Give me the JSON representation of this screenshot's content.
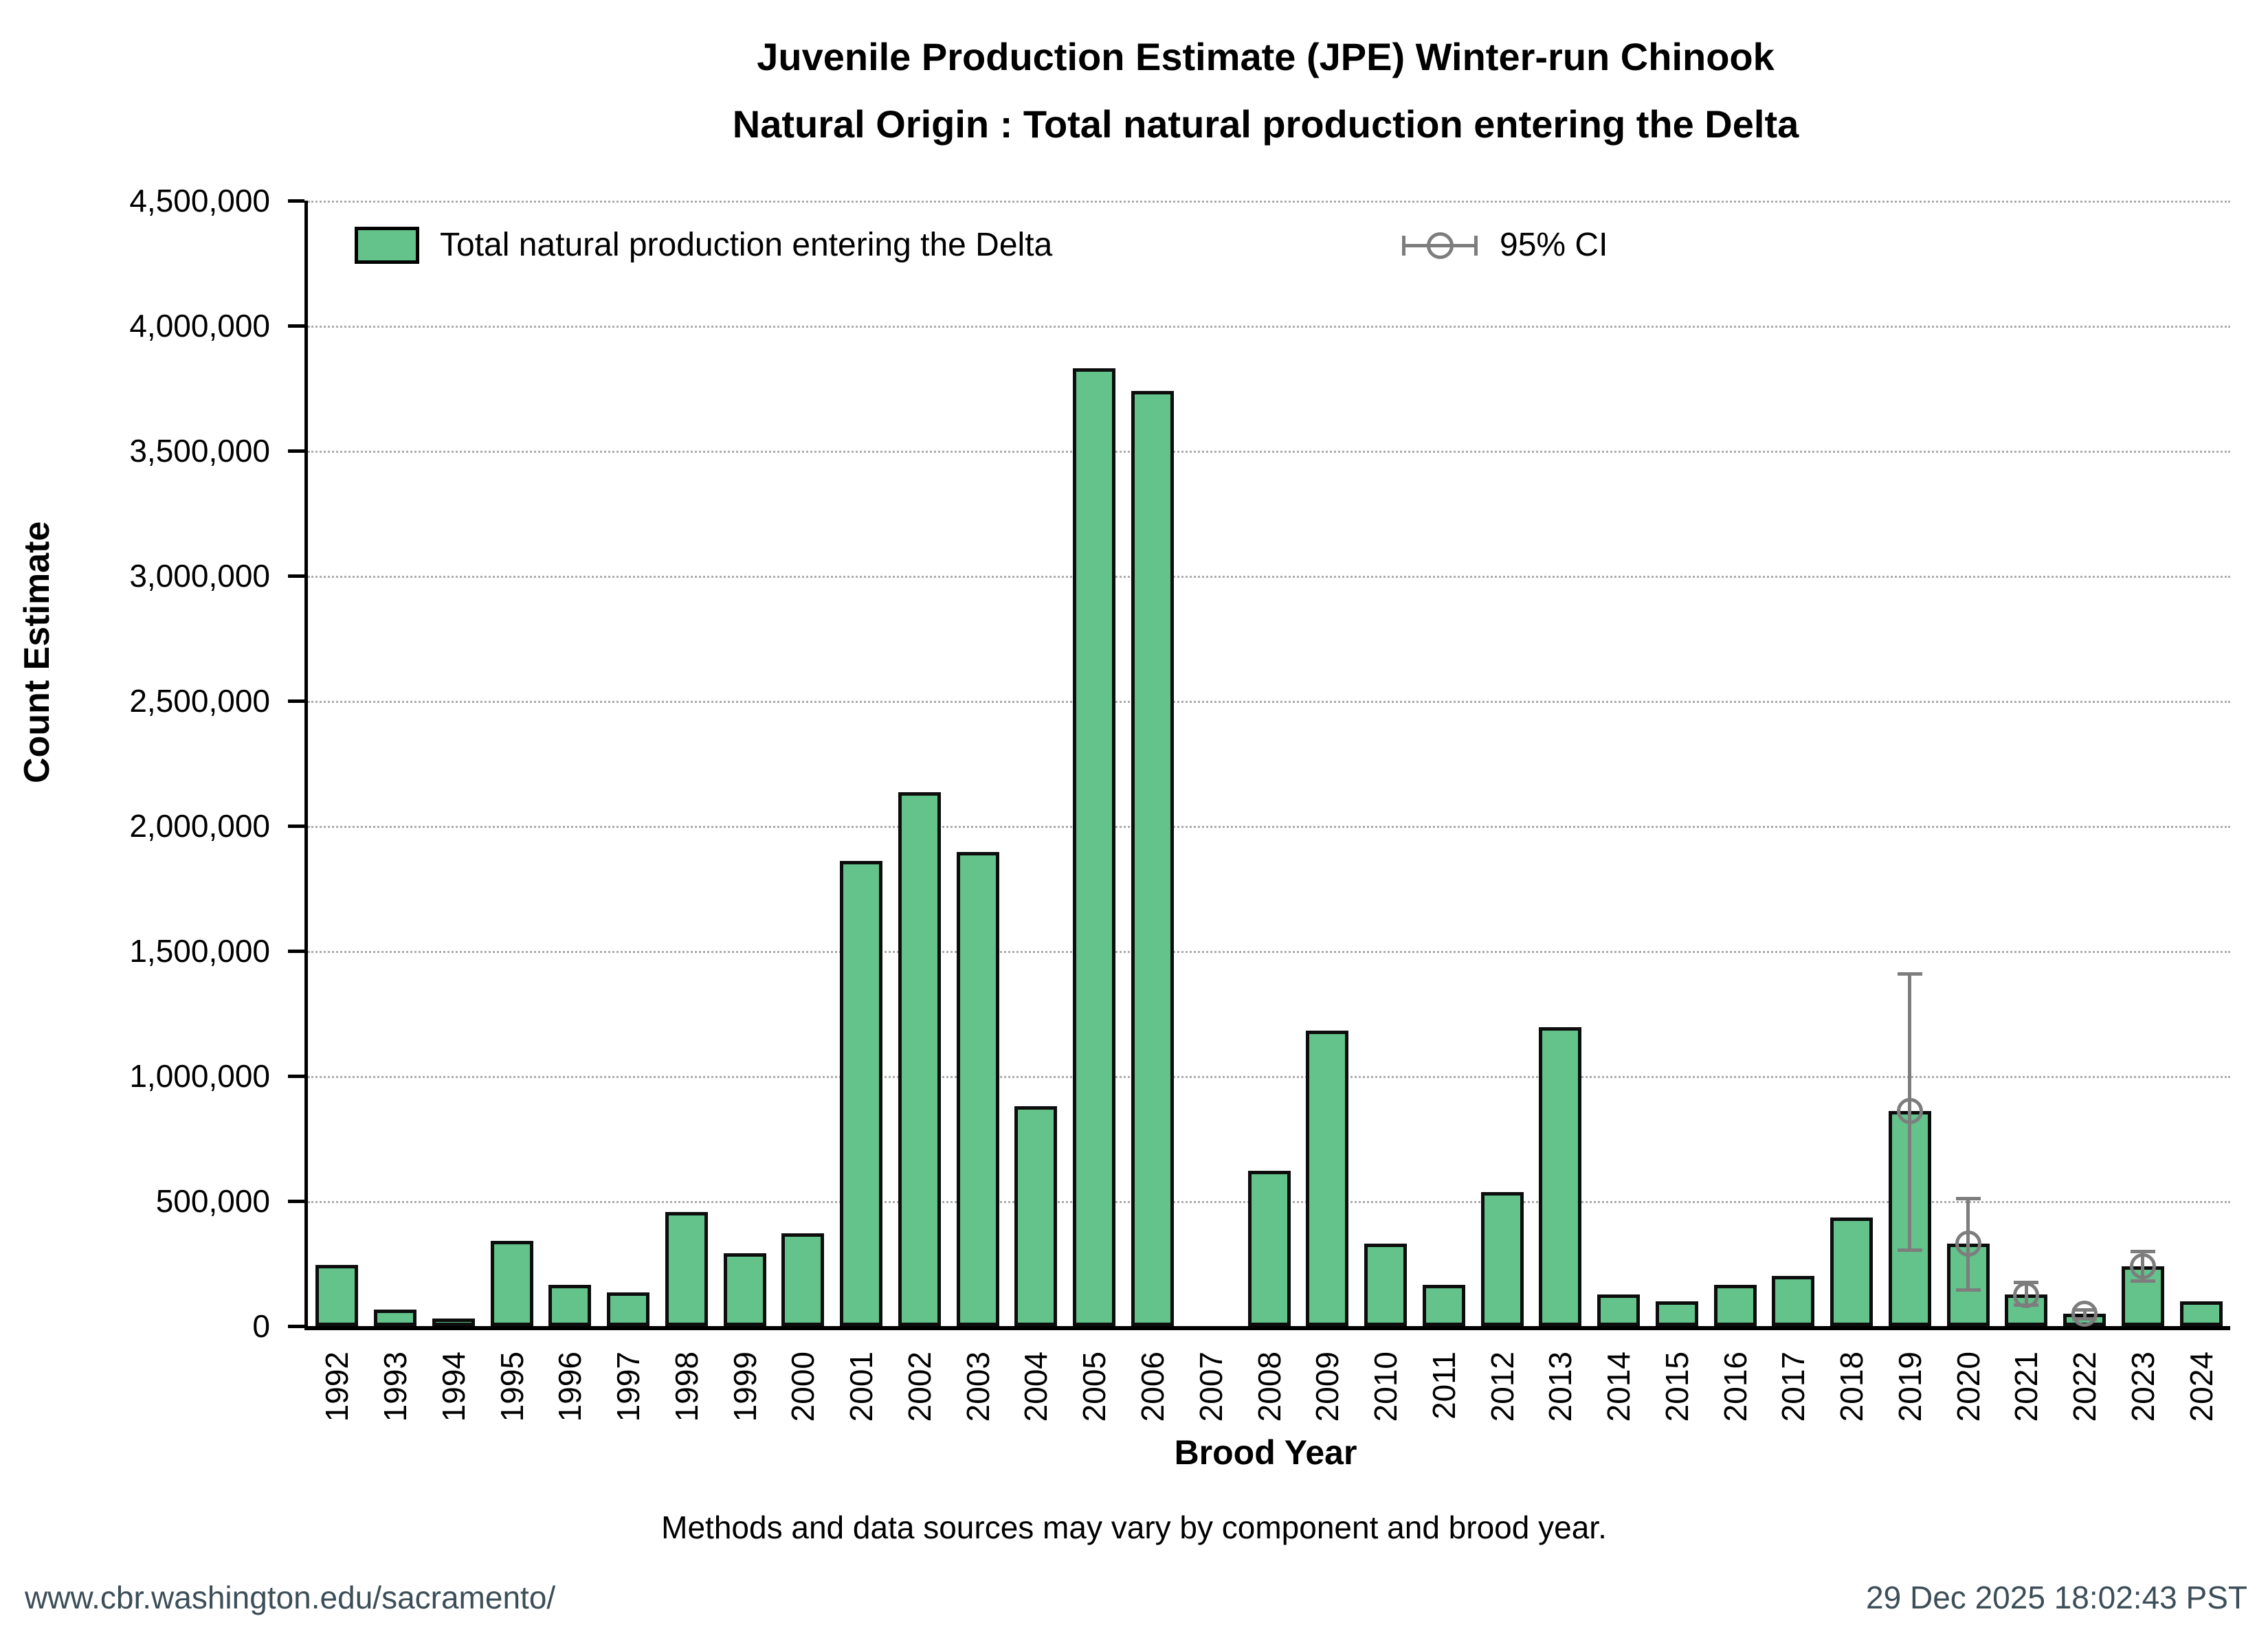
{
  "title": {
    "line1": "Juvenile Production Estimate (JPE) Winter-run Chinook",
    "line2": "Natural Origin : Total natural production entering the Delta"
  },
  "legend": {
    "series_label": "Total natural production entering the Delta",
    "ci_label": "95% CI"
  },
  "caption": "Methods and data sources may vary by component and brood year.",
  "footer": {
    "left": "www.cbr.washington.edu/sacramento/",
    "right": "29 Dec 2025 18:02:43 PST"
  },
  "colors": {
    "bar_fill": "#63c38b",
    "bar_edge": "#0d0d0d",
    "ci_gray": "#7d7d7d",
    "gridline": "#ababab",
    "footer_text": "#3c4e57",
    "background": "#ffffff"
  },
  "chart_data": {
    "type": "bar",
    "title": "Juvenile Production Estimate (JPE) Winter-run Chinook — Natural Origin : Total natural production entering the Delta",
    "xlabel": "Brood Year",
    "ylabel": "Count Estimate",
    "ylim": [
      0,
      4500000
    ],
    "ytick_step": 500000,
    "ytick_labels": [
      "0",
      "500,000",
      "1,000,000",
      "1,500,000",
      "2,000,000",
      "2,500,000",
      "3,000,000",
      "3,500,000",
      "4,000,000",
      "4,500,000"
    ],
    "grid": "horizontal-dotted",
    "legend_position": "top-inside",
    "categories": [
      1992,
      1993,
      1994,
      1995,
      1996,
      1997,
      1998,
      1999,
      2000,
      2001,
      2002,
      2003,
      2004,
      2005,
      2006,
      2007,
      2008,
      2009,
      2010,
      2011,
      2012,
      2013,
      2014,
      2015,
      2016,
      2017,
      2018,
      2019,
      2020,
      2021,
      2022,
      2023,
      2024
    ],
    "series": [
      {
        "name": "Total natural production entering the Delta",
        "values": [
          245000,
          65000,
          30000,
          340000,
          165000,
          135000,
          455000,
          290000,
          370000,
          1860000,
          2135000,
          1895000,
          880000,
          3830000,
          3740000,
          null,
          620000,
          1180000,
          330000,
          165000,
          535000,
          1195000,
          125000,
          100000,
          165000,
          200000,
          435000,
          860000,
          330000,
          125000,
          50000,
          240000,
          100000
        ]
      }
    ],
    "ci_low": [
      null,
      null,
      null,
      null,
      null,
      null,
      null,
      null,
      null,
      null,
      null,
      null,
      null,
      null,
      null,
      null,
      null,
      null,
      null,
      null,
      null,
      null,
      null,
      null,
      null,
      null,
      null,
      305000,
      145000,
      85000,
      30000,
      180000,
      null
    ],
    "ci_high": [
      null,
      null,
      null,
      null,
      null,
      null,
      null,
      null,
      null,
      null,
      null,
      null,
      null,
      null,
      null,
      null,
      null,
      null,
      null,
      null,
      null,
      null,
      null,
      null,
      null,
      null,
      null,
      1410000,
      510000,
      175000,
      65000,
      300000,
      null
    ]
  }
}
